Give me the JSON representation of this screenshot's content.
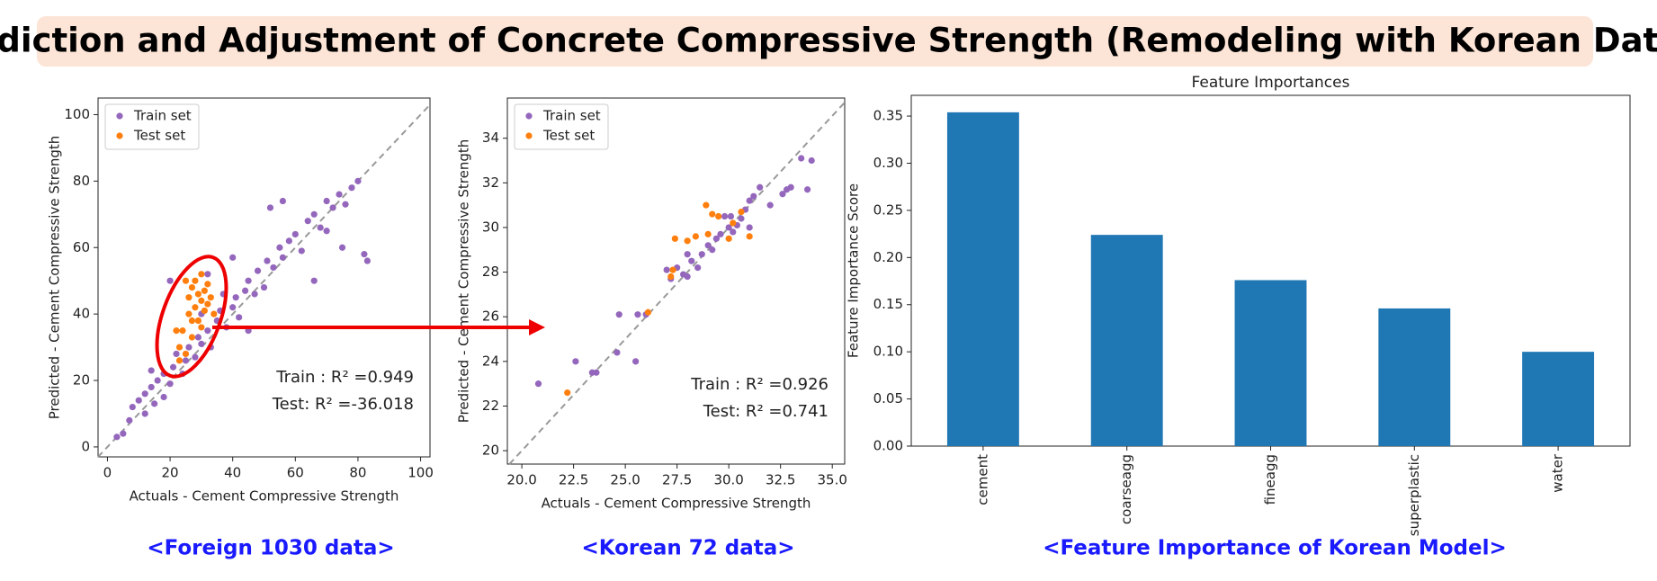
{
  "header": {
    "title": "Prediction and Adjustment of Concrete Compressive Strength (Remodeling with Korean Data)"
  },
  "captions": [
    "<Foreign 1030 data>",
    "<Korean 72 data>",
    "<Feature Importance of Korean Model>"
  ],
  "chart_data": [
    {
      "type": "scatter",
      "x_label": "Actuals - Cement Compressive Strength",
      "y_label": "Predicted - Cement Compressive Strength",
      "xlim": [
        -3,
        103
      ],
      "ylim": [
        -3,
        105
      ],
      "xticks": [
        0,
        20,
        40,
        60,
        80,
        100
      ],
      "yticks": [
        0,
        20,
        40,
        60,
        80,
        100
      ],
      "legend": "upper left",
      "identity_line": true,
      "annotations": [
        "Train : R² =0.949",
        "Test: R² =-36.018"
      ],
      "series": [
        {
          "name": "Train set",
          "color": "#9467bd",
          "x": [
            3,
            5,
            7,
            8,
            10,
            12,
            12,
            14,
            15,
            16,
            18,
            18,
            20,
            21,
            22,
            24,
            25,
            26,
            28,
            29,
            30,
            32,
            33,
            35,
            36,
            38,
            40,
            41,
            42,
            44,
            45,
            47,
            48,
            50,
            51,
            53,
            55,
            56,
            58,
            60,
            62,
            64,
            66,
            68,
            70,
            72,
            74,
            76,
            78,
            80,
            82,
            83,
            70,
            75,
            66,
            56,
            52,
            32,
            40,
            30,
            20,
            14,
            45,
            37
          ],
          "y": [
            3,
            4,
            8,
            12,
            14,
            10,
            16,
            18,
            13,
            20,
            15,
            22,
            19,
            24,
            28,
            22,
            26,
            30,
            27,
            33,
            31,
            35,
            30,
            38,
            41,
            36,
            42,
            45,
            39,
            47,
            50,
            46,
            53,
            48,
            56,
            54,
            60,
            57,
            62,
            64,
            59,
            68,
            70,
            66,
            74,
            72,
            76,
            73,
            78,
            80,
            58,
            56,
            65,
            60,
            50,
            74,
            72,
            52,
            57,
            40,
            50,
            23,
            35,
            46
          ]
        },
        {
          "name": "Test set",
          "color": "#ff7f0e",
          "x": [
            23,
            24,
            25,
            26,
            26,
            27,
            27,
            28,
            28,
            29,
            29,
            30,
            30,
            31,
            31,
            32,
            32,
            33,
            34,
            23,
            25,
            27,
            30,
            22
          ],
          "y": [
            30,
            35,
            28,
            40,
            45,
            33,
            48,
            42,
            50,
            38,
            46,
            44,
            52,
            41,
            47,
            43,
            49,
            45,
            40,
            26,
            50,
            38,
            36,
            35
          ]
        }
      ]
    },
    {
      "type": "scatter",
      "x_label": "Actuals - Cement Compressive Strength",
      "y_label": "Predicted - Cement Compressive Strength",
      "xlim": [
        19.3,
        35.6
      ],
      "ylim": [
        19.4,
        35.8
      ],
      "xticks": [
        {
          "value": 20,
          "label": "20.0"
        },
        {
          "value": 22.5,
          "label": "22.5"
        },
        {
          "value": 25,
          "label": "25.0"
        },
        {
          "value": 27.5,
          "label": "27.5"
        },
        {
          "value": 30,
          "label": "30.0"
        },
        {
          "value": 32.5,
          "label": "32.5"
        },
        {
          "value": 35,
          "label": "35.0"
        }
      ],
      "yticks": [
        20,
        22,
        24,
        26,
        28,
        30,
        32,
        34
      ],
      "legend": "upper left",
      "identity_line": true,
      "annotations": [
        "Train : R² =0.926",
        "Test: R² =0.741"
      ],
      "series": [
        {
          "name": "Train set",
          "color": "#9467bd",
          "x": [
            20.8,
            22.6,
            23.4,
            23.6,
            24.6,
            24.7,
            25.5,
            25.6,
            26.0,
            27.0,
            27.2,
            27.5,
            27.8,
            28.0,
            28.2,
            28.5,
            28.7,
            29.0,
            29.2,
            29.4,
            29.6,
            29.8,
            30.0,
            30.1,
            30.2,
            30.4,
            30.6,
            30.8,
            31.0,
            31.2,
            31.5,
            32.0,
            32.6,
            32.8,
            33.0,
            33.5,
            33.8,
            34.0,
            31.0,
            28.0
          ],
          "y": [
            23.0,
            24.0,
            23.5,
            23.5,
            24.4,
            26.1,
            24.0,
            26.1,
            26.1,
            28.1,
            27.7,
            28.2,
            27.9,
            27.8,
            28.5,
            28.2,
            28.8,
            29.2,
            29.0,
            29.5,
            29.7,
            30.5,
            30.0,
            30.5,
            29.8,
            30.1,
            30.4,
            30.8,
            31.2,
            31.4,
            31.8,
            31.0,
            31.5,
            31.7,
            31.8,
            33.1,
            31.7,
            33.0,
            30.0,
            28.8
          ]
        },
        {
          "name": "Test set",
          "color": "#ff7f0e",
          "x": [
            22.2,
            26.1,
            27.2,
            27.3,
            27.4,
            28.0,
            28.9,
            29.2,
            29.5,
            29.0,
            30.0,
            30.2,
            31.0,
            28.4,
            30.6
          ],
          "y": [
            22.6,
            26.2,
            27.8,
            28.1,
            29.5,
            29.4,
            31.0,
            30.6,
            30.5,
            29.7,
            29.5,
            30.2,
            29.6,
            29.6,
            30.7
          ]
        }
      ]
    },
    {
      "type": "bar",
      "title": "Feature Importances",
      "y_label": "Feature Importance Score",
      "categories": [
        "cement",
        "coarseagg",
        "fineagg",
        "superplastic",
        "water"
      ],
      "values": [
        0.354,
        0.224,
        0.176,
        0.146,
        0.1
      ],
      "color": "#1f77b4",
      "ylim": [
        0,
        0.372
      ],
      "yticks": [
        {
          "value": 0,
          "label": "0.00"
        },
        {
          "value": 0.05,
          "label": "0.05"
        },
        {
          "value": 0.1,
          "label": "0.10"
        },
        {
          "value": 0.15,
          "label": "0.15"
        },
        {
          "value": 0.2,
          "label": "0.20"
        },
        {
          "value": 0.25,
          "label": "0.25"
        },
        {
          "value": 0.3,
          "label": "0.30"
        },
        {
          "value": 0.35,
          "label": "0.35"
        }
      ]
    }
  ]
}
